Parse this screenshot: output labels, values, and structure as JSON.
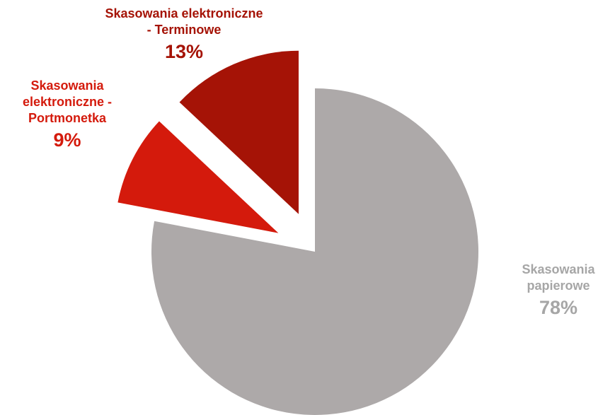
{
  "chart_data": {
    "type": "pie",
    "title": "",
    "slices": [
      {
        "label": "Skasowania papierowe",
        "label_lines": [
          "Skasowania",
          "papierowe"
        ],
        "value": 78,
        "value_label": "78%",
        "color": "#ADA9A9",
        "label_color": "#A6A6A6",
        "exploded": false
      },
      {
        "label": "Skasowania elektroniczne - Portmonetka",
        "label_lines": [
          "Skasowania",
          "elektroniczne -",
          "Portmonetka"
        ],
        "value": 9,
        "value_label": "9%",
        "color": "#D41A0C",
        "label_color": "#D41A0C",
        "exploded": true
      },
      {
        "label": "Skasowania elektroniczne - Terminowe",
        "label_lines": [
          "Skasowania elektroniczne",
          "- Terminowe"
        ],
        "value": 13,
        "value_label": "13%",
        "color": "#A51306",
        "label_color": "#A51306",
        "exploded": true
      }
    ],
    "start": "12 o'clock",
    "direction": "clockwise",
    "legend": "none"
  }
}
